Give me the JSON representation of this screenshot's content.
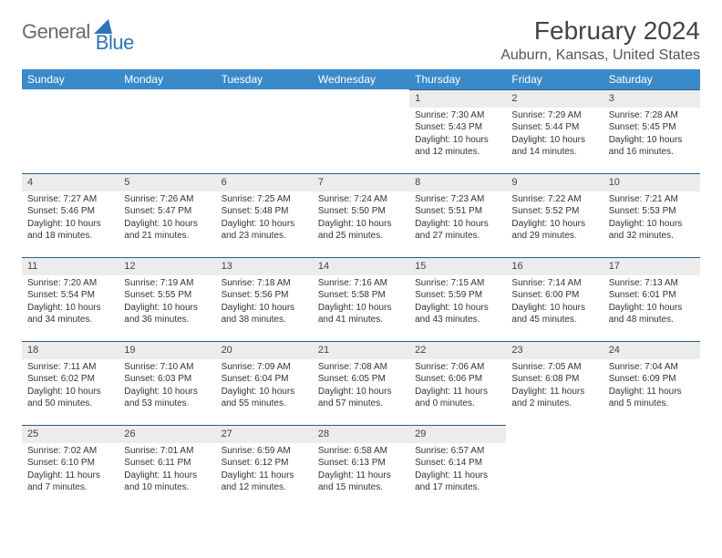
{
  "brand": {
    "word1": "General",
    "word2": "Blue"
  },
  "header": {
    "title": "February 2024",
    "location": "Auburn, Kansas, United States"
  },
  "colors": {
    "header_bg": "#3a8ac9",
    "band_bg": "#ececec",
    "band_border": "#2e5c86",
    "logo_gray": "#6a6a6a",
    "logo_blue": "#2e75b6"
  },
  "weekdays": [
    "Sunday",
    "Monday",
    "Tuesday",
    "Wednesday",
    "Thursday",
    "Friday",
    "Saturday"
  ],
  "weeks": [
    [
      null,
      null,
      null,
      null,
      {
        "n": "1",
        "sr": "7:30 AM",
        "ss": "5:43 PM",
        "d": "10 hours and 12 minutes."
      },
      {
        "n": "2",
        "sr": "7:29 AM",
        "ss": "5:44 PM",
        "d": "10 hours and 14 minutes."
      },
      {
        "n": "3",
        "sr": "7:28 AM",
        "ss": "5:45 PM",
        "d": "10 hours and 16 minutes."
      }
    ],
    [
      {
        "n": "4",
        "sr": "7:27 AM",
        "ss": "5:46 PM",
        "d": "10 hours and 18 minutes."
      },
      {
        "n": "5",
        "sr": "7:26 AM",
        "ss": "5:47 PM",
        "d": "10 hours and 21 minutes."
      },
      {
        "n": "6",
        "sr": "7:25 AM",
        "ss": "5:48 PM",
        "d": "10 hours and 23 minutes."
      },
      {
        "n": "7",
        "sr": "7:24 AM",
        "ss": "5:50 PM",
        "d": "10 hours and 25 minutes."
      },
      {
        "n": "8",
        "sr": "7:23 AM",
        "ss": "5:51 PM",
        "d": "10 hours and 27 minutes."
      },
      {
        "n": "9",
        "sr": "7:22 AM",
        "ss": "5:52 PM",
        "d": "10 hours and 29 minutes."
      },
      {
        "n": "10",
        "sr": "7:21 AM",
        "ss": "5:53 PM",
        "d": "10 hours and 32 minutes."
      }
    ],
    [
      {
        "n": "11",
        "sr": "7:20 AM",
        "ss": "5:54 PM",
        "d": "10 hours and 34 minutes."
      },
      {
        "n": "12",
        "sr": "7:19 AM",
        "ss": "5:55 PM",
        "d": "10 hours and 36 minutes."
      },
      {
        "n": "13",
        "sr": "7:18 AM",
        "ss": "5:56 PM",
        "d": "10 hours and 38 minutes."
      },
      {
        "n": "14",
        "sr": "7:16 AM",
        "ss": "5:58 PM",
        "d": "10 hours and 41 minutes."
      },
      {
        "n": "15",
        "sr": "7:15 AM",
        "ss": "5:59 PM",
        "d": "10 hours and 43 minutes."
      },
      {
        "n": "16",
        "sr": "7:14 AM",
        "ss": "6:00 PM",
        "d": "10 hours and 45 minutes."
      },
      {
        "n": "17",
        "sr": "7:13 AM",
        "ss": "6:01 PM",
        "d": "10 hours and 48 minutes."
      }
    ],
    [
      {
        "n": "18",
        "sr": "7:11 AM",
        "ss": "6:02 PM",
        "d": "10 hours and 50 minutes."
      },
      {
        "n": "19",
        "sr": "7:10 AM",
        "ss": "6:03 PM",
        "d": "10 hours and 53 minutes."
      },
      {
        "n": "20",
        "sr": "7:09 AM",
        "ss": "6:04 PM",
        "d": "10 hours and 55 minutes."
      },
      {
        "n": "21",
        "sr": "7:08 AM",
        "ss": "6:05 PM",
        "d": "10 hours and 57 minutes."
      },
      {
        "n": "22",
        "sr": "7:06 AM",
        "ss": "6:06 PM",
        "d": "11 hours and 0 minutes."
      },
      {
        "n": "23",
        "sr": "7:05 AM",
        "ss": "6:08 PM",
        "d": "11 hours and 2 minutes."
      },
      {
        "n": "24",
        "sr": "7:04 AM",
        "ss": "6:09 PM",
        "d": "11 hours and 5 minutes."
      }
    ],
    [
      {
        "n": "25",
        "sr": "7:02 AM",
        "ss": "6:10 PM",
        "d": "11 hours and 7 minutes."
      },
      {
        "n": "26",
        "sr": "7:01 AM",
        "ss": "6:11 PM",
        "d": "11 hours and 10 minutes."
      },
      {
        "n": "27",
        "sr": "6:59 AM",
        "ss": "6:12 PM",
        "d": "11 hours and 12 minutes."
      },
      {
        "n": "28",
        "sr": "6:58 AM",
        "ss": "6:13 PM",
        "d": "11 hours and 15 minutes."
      },
      {
        "n": "29",
        "sr": "6:57 AM",
        "ss": "6:14 PM",
        "d": "11 hours and 17 minutes."
      },
      null,
      null
    ]
  ],
  "labels": {
    "sunrise": "Sunrise: ",
    "sunset": "Sunset: ",
    "daylight": "Daylight: "
  }
}
